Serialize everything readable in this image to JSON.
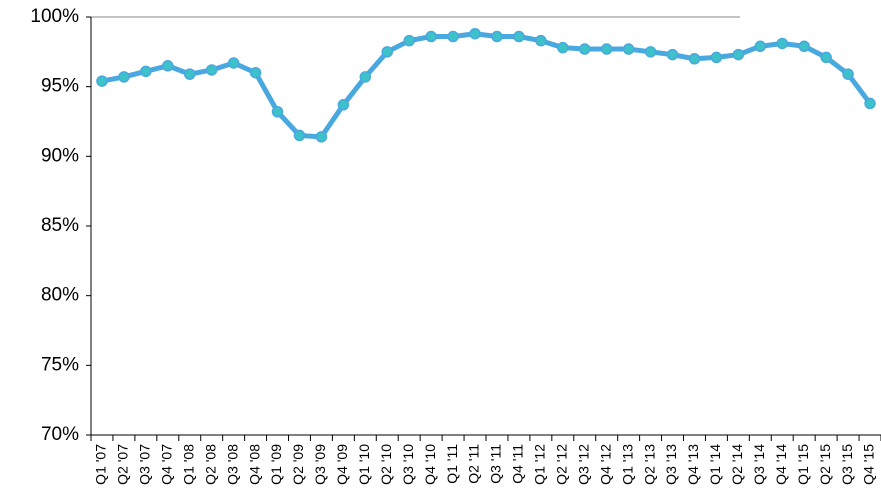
{
  "chart_data": {
    "type": "line",
    "categories": [
      "Q1 '07",
      "Q2 '07",
      "Q3 '07",
      "Q4 '07",
      "Q1 '08",
      "Q2 '08",
      "Q3 '08",
      "Q4 '08",
      "Q1 '09",
      "Q2 '09",
      "Q3 '09",
      "Q4 '09",
      "Q1 '10",
      "Q2 '10",
      "Q3 '10",
      "Q4 '10",
      "Q1 '11",
      "Q2 '11",
      "Q3 '11",
      "Q4 '11",
      "Q1 '12",
      "Q2 '12",
      "Q3 '12",
      "Q4 '12",
      "Q1 '13",
      "Q2 '13",
      "Q3 '13",
      "Q4 '13",
      "Q1 '14",
      "Q2 '14",
      "Q3 '14",
      "Q4 '14",
      "Q1 '15",
      "Q2 '15",
      "Q3 '15",
      "Q4 '15"
    ],
    "series": [
      {
        "color": "#4aa8e0",
        "marker_color": "#3cc2c8",
        "values": [
          95.4,
          95.7,
          96.1,
          96.5,
          95.9,
          96.2,
          96.7,
          96.0,
          93.2,
          91.5,
          91.4,
          93.7,
          95.7,
          97.5,
          98.3,
          98.6,
          98.6,
          98.8,
          98.6,
          98.6,
          98.3,
          97.8,
          97.7,
          97.7,
          97.7,
          97.5,
          97.3,
          97.0,
          97.1,
          97.3,
          97.9,
          98.1,
          97.9,
          97.1,
          95.9,
          93.8
        ]
      }
    ],
    "ylim": [
      70,
      100
    ],
    "yticks": [
      {
        "value": 70,
        "label": "70%"
      },
      {
        "value": 75,
        "label": "75%"
      },
      {
        "value": 80,
        "label": "80%"
      },
      {
        "value": 85,
        "label": "85%"
      },
      {
        "value": 90,
        "label": "90%"
      },
      {
        "value": 95,
        "label": "95%"
      },
      {
        "value": 100,
        "label": "100%"
      }
    ],
    "grid": false
  }
}
